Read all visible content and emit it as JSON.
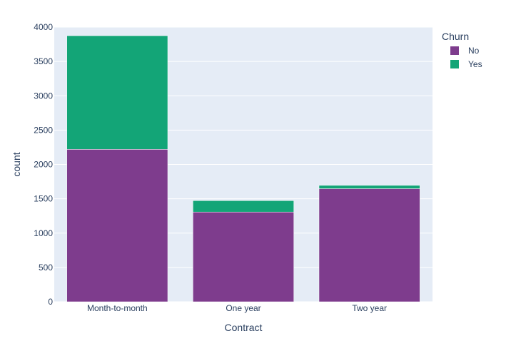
{
  "chart_data": {
    "type": "bar",
    "barmode": "stack",
    "categories": [
      "Month-to-month",
      "One year",
      "Two year"
    ],
    "series": [
      {
        "name": "No",
        "values": [
          2220,
          1307,
          1647
        ],
        "color": "#7e3c8d"
      },
      {
        "name": "Yes",
        "values": [
          1655,
          166,
          48
        ],
        "color": "#13a577"
      }
    ],
    "xlabel": "Contract",
    "ylabel": "count",
    "ylim": [
      0,
      4000
    ],
    "yticks": [
      0,
      500,
      1000,
      1500,
      2000,
      2500,
      3000,
      3500,
      4000
    ],
    "legend": {
      "title": "Churn",
      "placement": "top-right"
    },
    "grid": true,
    "plot_bg": "#e5ecf6"
  }
}
